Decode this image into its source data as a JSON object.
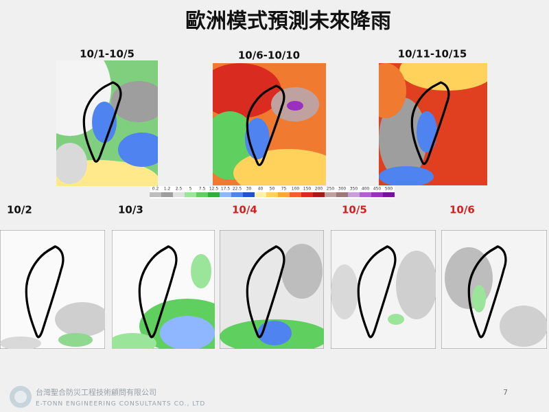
{
  "title": "歐洲模式預測未來降雨",
  "top": {
    "panels": [
      {
        "label": "10/1-10/5"
      },
      {
        "label": "10/6-10/10"
      },
      {
        "label": "10/11-10/15"
      }
    ]
  },
  "scale": [
    {
      "label": "0.2",
      "color": "#bdbdbd"
    },
    {
      "label": "1.2",
      "color": "#9e9e9e"
    },
    {
      "label": "2.5",
      "color": "#e0e0e0"
    },
    {
      "label": "5",
      "color": "#9be59b"
    },
    {
      "label": "7.5",
      "color": "#5fcf5f"
    },
    {
      "label": "12.5",
      "color": "#2fae3a"
    },
    {
      "label": "17.5",
      "color": "#8fb7ff"
    },
    {
      "label": "22.5",
      "color": "#4f84f0"
    },
    {
      "label": "30",
      "color": "#2452c8"
    },
    {
      "label": "40",
      "color": "#fff2a8"
    },
    {
      "label": "50",
      "color": "#ffd25c"
    },
    {
      "label": "75",
      "color": "#ffa53a"
    },
    {
      "label": "100",
      "color": "#f0602a"
    },
    {
      "label": "150",
      "color": "#d92b1f"
    },
    {
      "label": "200",
      "color": "#a8191a"
    },
    {
      "label": "250",
      "color": "#bfa2a0"
    },
    {
      "label": "300",
      "color": "#9b7a78"
    },
    {
      "label": "350",
      "color": "#c8a0d8"
    },
    {
      "label": "400",
      "color": "#b060d0"
    },
    {
      "label": "450",
      "color": "#9a2fc0"
    },
    {
      "label": "500",
      "color": "#7a10a0"
    }
  ],
  "bottom": {
    "panels": [
      {
        "label": "10/2"
      },
      {
        "label": "10/3"
      },
      {
        "label": "10/4"
      },
      {
        "label": "10/5"
      },
      {
        "label": "10/6"
      }
    ]
  },
  "footer": {
    "company": "台灣聖合防災工程技術顧問有限公司",
    "company_en": "E-TONN ENGINEERING CONSULTANTS CO., LTD",
    "page": "7"
  }
}
